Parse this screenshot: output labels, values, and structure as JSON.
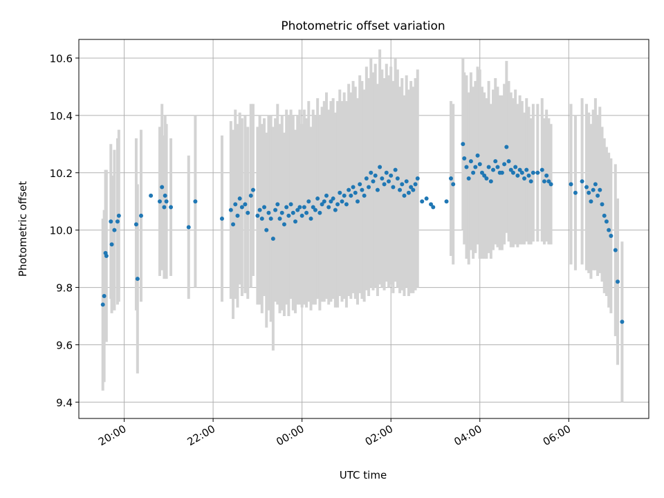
{
  "chart_data": {
    "type": "scatter",
    "title": "Photometric offset variation",
    "xlabel": "UTC time",
    "ylabel": "Photometric offset",
    "x_tick_labels": [
      "20:00",
      "22:00",
      "00:00",
      "02:00",
      "04:00",
      "06:00"
    ],
    "x_tick_hours": [
      20,
      22,
      24,
      26,
      28,
      30
    ],
    "y_ticks": [
      9.4,
      9.6,
      9.8,
      10.0,
      10.2,
      10.4,
      10.6
    ],
    "y_tick_labels": [
      "9.4",
      "9.6",
      "9.8",
      "10.0",
      "10.2",
      "10.4",
      "10.6"
    ],
    "xlim_hours": [
      18.98,
      31.8
    ],
    "ylim": [
      9.343,
      10.665
    ],
    "grid": true,
    "legend": "none",
    "colors": {
      "points": "#1f77b4",
      "errorbars": "#d3d3d3",
      "grid": "#b0b0b0"
    },
    "series": [
      {
        "x_hours": [
          19.52,
          19.55,
          19.58,
          19.6,
          19.7,
          19.72,
          19.78,
          19.85,
          19.88,
          20.27,
          20.3,
          20.38,
          20.6,
          20.8,
          20.85,
          20.9,
          20.92,
          20.95,
          21.05,
          21.45,
          21.6,
          22.2,
          22.4,
          22.45,
          22.5,
          22.55,
          22.6,
          22.65,
          22.72,
          22.78,
          22.85,
          22.9,
          23.0,
          23.05,
          23.1,
          23.15,
          23.2,
          23.25,
          23.3,
          23.35,
          23.4,
          23.45,
          23.5,
          23.55,
          23.6,
          23.65,
          23.7,
          23.75,
          23.8,
          23.85,
          23.9,
          23.95,
          24.0,
          24.05,
          24.1,
          24.15,
          24.2,
          24.25,
          24.3,
          24.35,
          24.4,
          24.45,
          24.5,
          24.55,
          24.6,
          24.65,
          24.7,
          24.75,
          24.8,
          24.85,
          24.9,
          24.95,
          25.0,
          25.05,
          25.1,
          25.15,
          25.2,
          25.25,
          25.3,
          25.35,
          25.4,
          25.45,
          25.5,
          25.55,
          25.6,
          25.65,
          25.7,
          25.75,
          25.8,
          25.85,
          25.9,
          25.95,
          26.0,
          26.05,
          26.1,
          26.15,
          26.2,
          26.25,
          26.3,
          26.35,
          26.4,
          26.45,
          26.5,
          26.55,
          26.6,
          26.7,
          26.8,
          26.9,
          26.95,
          27.25,
          27.35,
          27.4,
          27.62,
          27.65,
          27.7,
          27.75,
          27.8,
          27.85,
          27.9,
          27.95,
          28.0,
          28.05,
          28.1,
          28.15,
          28.2,
          28.25,
          28.3,
          28.35,
          28.4,
          28.45,
          28.5,
          28.55,
          28.6,
          28.65,
          28.7,
          28.75,
          28.8,
          28.85,
          28.9,
          28.95,
          29.0,
          29.05,
          29.1,
          29.15,
          29.2,
          29.3,
          29.4,
          29.45,
          29.5,
          29.55,
          29.6,
          30.05,
          30.15,
          30.3,
          30.4,
          30.45,
          30.5,
          30.55,
          30.6,
          30.65,
          30.7,
          30.75,
          30.8,
          30.85,
          30.9,
          30.95,
          31.05,
          31.1,
          31.2
        ],
        "y": [
          9.74,
          9.77,
          9.92,
          9.91,
          10.03,
          9.95,
          10.0,
          10.03,
          10.05,
          10.02,
          9.83,
          10.05,
          10.12,
          10.1,
          10.15,
          10.08,
          10.12,
          10.1,
          10.08,
          10.01,
          10.1,
          10.04,
          10.07,
          10.02,
          10.09,
          10.05,
          10.11,
          10.08,
          10.09,
          10.06,
          10.12,
          10.14,
          10.05,
          10.07,
          10.04,
          10.08,
          10.0,
          10.06,
          10.04,
          9.97,
          10.07,
          10.09,
          10.04,
          10.06,
          10.02,
          10.08,
          10.05,
          10.09,
          10.06,
          10.03,
          10.07,
          10.08,
          10.05,
          10.08,
          10.06,
          10.1,
          10.04,
          10.08,
          10.07,
          10.11,
          10.06,
          10.09,
          10.1,
          10.12,
          10.08,
          10.1,
          10.11,
          10.07,
          10.09,
          10.13,
          10.1,
          10.12,
          10.09,
          10.14,
          10.12,
          10.15,
          10.13,
          10.1,
          10.16,
          10.14,
          10.12,
          10.18,
          10.15,
          10.2,
          10.17,
          10.19,
          10.14,
          10.22,
          10.18,
          10.16,
          10.2,
          10.17,
          10.19,
          10.15,
          10.21,
          10.18,
          10.14,
          10.16,
          10.12,
          10.17,
          10.13,
          10.15,
          10.14,
          10.16,
          10.18,
          10.1,
          10.11,
          10.09,
          10.08,
          10.1,
          10.18,
          10.16,
          10.3,
          10.25,
          10.22,
          10.18,
          10.24,
          10.2,
          10.22,
          10.26,
          10.23,
          10.2,
          10.19,
          10.18,
          10.22,
          10.17,
          10.21,
          10.24,
          10.22,
          10.2,
          10.2,
          10.23,
          10.29,
          10.24,
          10.21,
          10.2,
          10.22,
          10.19,
          10.21,
          10.2,
          10.18,
          10.21,
          10.19,
          10.17,
          10.2,
          10.2,
          10.21,
          10.17,
          10.19,
          10.17,
          10.16,
          10.16,
          10.13,
          10.17,
          10.15,
          10.13,
          10.1,
          10.14,
          10.16,
          10.12,
          10.14,
          10.09,
          10.05,
          10.03,
          10.0,
          9.98,
          9.93,
          9.82,
          9.68
        ],
        "err": [
          0.3,
          0.3,
          0.29,
          0.3,
          0.27,
          0.24,
          0.28,
          0.29,
          0.3,
          0.3,
          0.33,
          0.3,
          0.0,
          0.26,
          0.29,
          0.25,
          0.28,
          0.27,
          0.24,
          0.25,
          0.3,
          0.29,
          0.31,
          0.33,
          0.33,
          0.32,
          0.3,
          0.31,
          0.31,
          0.3,
          0.32,
          0.3,
          0.31,
          0.33,
          0.33,
          0.31,
          0.34,
          0.34,
          0.36,
          0.39,
          0.32,
          0.35,
          0.33,
          0.34,
          0.32,
          0.34,
          0.35,
          0.33,
          0.34,
          0.32,
          0.33,
          0.34,
          0.32,
          0.34,
          0.33,
          0.35,
          0.32,
          0.34,
          0.33,
          0.35,
          0.34,
          0.34,
          0.35,
          0.36,
          0.34,
          0.35,
          0.35,
          0.34,
          0.36,
          0.36,
          0.35,
          0.36,
          0.36,
          0.37,
          0.36,
          0.37,
          0.37,
          0.36,
          0.38,
          0.38,
          0.37,
          0.39,
          0.38,
          0.4,
          0.38,
          0.39,
          0.37,
          0.41,
          0.38,
          0.37,
          0.38,
          0.37,
          0.38,
          0.37,
          0.39,
          0.38,
          0.36,
          0.37,
          0.35,
          0.37,
          0.36,
          0.37,
          0.36,
          0.37,
          0.38,
          0.0,
          0.0,
          0.0,
          0.0,
          0.0,
          0.27,
          0.28,
          0.3,
          0.3,
          0.32,
          0.3,
          0.31,
          0.3,
          0.3,
          0.31,
          0.33,
          0.3,
          0.29,
          0.28,
          0.3,
          0.27,
          0.28,
          0.29,
          0.28,
          0.27,
          0.27,
          0.28,
          0.3,
          0.28,
          0.27,
          0.26,
          0.27,
          0.25,
          0.26,
          0.25,
          0.23,
          0.25,
          0.24,
          0.22,
          0.24,
          0.24,
          0.25,
          0.22,
          0.23,
          0.22,
          0.21,
          0.28,
          0.27,
          0.29,
          0.29,
          0.28,
          0.27,
          0.28,
          0.3,
          0.28,
          0.29,
          0.27,
          0.27,
          0.26,
          0.27,
          0.27,
          0.3,
          0.29,
          0.28
        ]
      }
    ]
  }
}
